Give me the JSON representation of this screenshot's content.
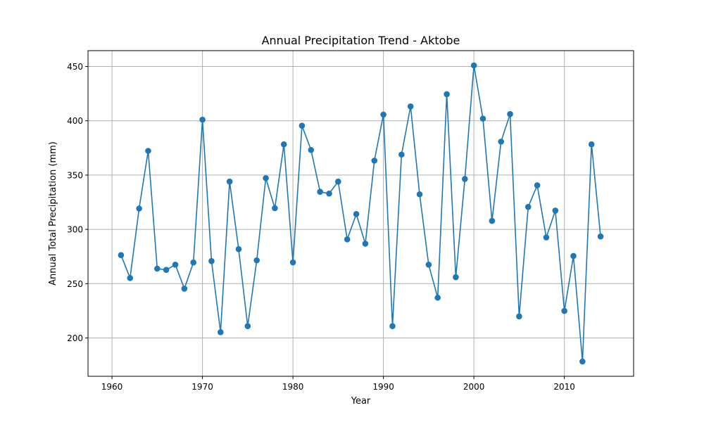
{
  "chart_data": {
    "type": "line",
    "title": "Annual Precipitation Trend - Aktobe",
    "xlabel": "Year",
    "ylabel": "Annual Total Precipitation (mm)",
    "xlim": [
      1957.35,
      2017.65
    ],
    "ylim": [
      164.7,
      464.6
    ],
    "xticks": [
      1960,
      1970,
      1980,
      1990,
      2000,
      2010
    ],
    "yticks": [
      200,
      250,
      300,
      350,
      400,
      450
    ],
    "grid": true,
    "colors": {
      "series": "#1f77b4",
      "grid": "#b0b0b0",
      "axes": "#000000"
    },
    "series": [
      {
        "marker": "circle",
        "x": [
          1961,
          1962,
          1963,
          1964,
          1965,
          1966,
          1967,
          1968,
          1969,
          1970,
          1971,
          1972,
          1973,
          1974,
          1975,
          1976,
          1977,
          1978,
          1979,
          1980,
          1981,
          1982,
          1983,
          1984,
          1985,
          1986,
          1987,
          1988,
          1989,
          1990,
          1991,
          1992,
          1993,
          1994,
          1995,
          1996,
          1997,
          1998,
          1999,
          2000,
          2001,
          2002,
          2003,
          2004,
          2005,
          2006,
          2007,
          2008,
          2009,
          2010,
          2011,
          2012,
          2013,
          2014
        ],
        "y": [
          276.3,
          255.2,
          319.2,
          372.3,
          263.8,
          262.7,
          267.5,
          245.4,
          269.5,
          401.0,
          270.8,
          205.3,
          344.0,
          281.8,
          210.9,
          271.5,
          347.2,
          319.5,
          378.3,
          269.6,
          395.5,
          373.1,
          334.6,
          333.0,
          344.0,
          290.8,
          314.1,
          286.8,
          363.3,
          405.7,
          210.9,
          368.9,
          413.2,
          332.3,
          267.5,
          237.1,
          424.5,
          256.0,
          346.4,
          451.0,
          402.0,
          307.8,
          380.8,
          406.2,
          219.9,
          320.7,
          340.6,
          292.6,
          317.3,
          224.9,
          275.5,
          178.3,
          378.3,
          293.5
        ]
      }
    ]
  }
}
